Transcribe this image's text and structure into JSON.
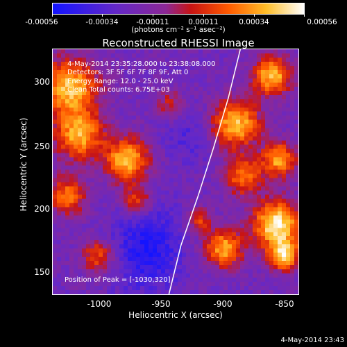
{
  "colorbar": {
    "tick_labels": [
      "-0.00056",
      "-0.00034",
      "-0.00011",
      "0.00011",
      "0.00034",
      "0.00056"
    ],
    "unit_label": "(photons cm⁻² s⁻¹ asec⁻²)"
  },
  "title": "Reconstructed RHESSI Image",
  "info": {
    "time_range": "4-May-2014 23:35:28.000 to 23:38:08.000",
    "detectors": "Detectors: 3F 5F 6F 7F 8F 9F, Att 0",
    "energy": "Energy Range: 12.0 - 25.0 keV",
    "clean": "Clean    Total counts: 6.75E+03",
    "peak": "Position of Peak = [-1030,320]"
  },
  "axes": {
    "xlabel": "Heliocentric X (arcsec)",
    "ylabel": "Heliocentric Y (arcsec)",
    "xticks": [
      "-1000",
      "-950",
      "-900",
      "-850"
    ],
    "yticks": [
      "300",
      "250",
      "200",
      "150"
    ]
  },
  "footer_timestamp": "4-May-2014 23:43",
  "chart_data": {
    "type": "heatmap",
    "title": "Reconstructed RHESSI Image",
    "xlabel": "Heliocentric X (arcsec)",
    "ylabel": "Heliocentric Y (arcsec)",
    "xlim": [
      -1038,
      -835
    ],
    "ylim": [
      130,
      330
    ],
    "x_ticks": [
      -1000,
      -950,
      -900,
      -850
    ],
    "y_ticks": [
      150,
      200,
      250,
      300
    ],
    "colorbar_range": [
      -0.00056,
      0.00056
    ],
    "colorbar_ticks": [
      -0.00056,
      -0.00034,
      -0.00011,
      0.00011,
      0.00034,
      0.00056
    ],
    "colormap": "blue-purple-red-orange-yellow-white",
    "peak_position": [
      -1030,
      320
    ],
    "limb_curve": [
      [
        -942,
        130
      ],
      [
        -932,
        170
      ],
      [
        -918,
        210
      ],
      [
        -905,
        250
      ],
      [
        -893,
        290
      ],
      [
        -883,
        330
      ]
    ]
  }
}
